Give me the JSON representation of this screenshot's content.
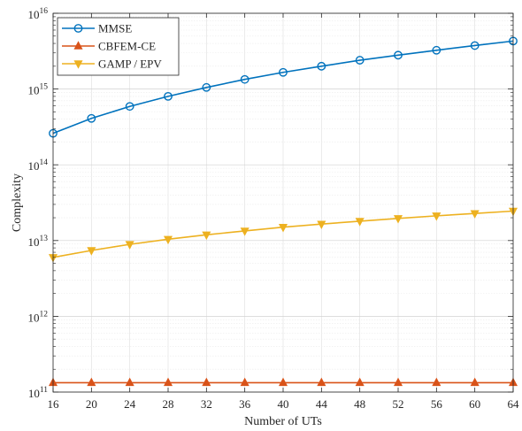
{
  "chart_data": {
    "type": "line",
    "title": "",
    "xlabel": "Number of UTs",
    "ylabel": "Complexity",
    "x": [
      16,
      20,
      24,
      28,
      32,
      36,
      40,
      44,
      48,
      52,
      56,
      60,
      64
    ],
    "x_ticks": [
      "16",
      "20",
      "24",
      "28",
      "32",
      "36",
      "40",
      "44",
      "48",
      "52",
      "56",
      "60",
      "64"
    ],
    "xlim": [
      16,
      64
    ],
    "y_scale": "log",
    "ylim": [
      100000000000,
      10000000000000000
    ],
    "y_ticks": [
      {
        "base": "10",
        "exp": "11"
      },
      {
        "base": "10",
        "exp": "12"
      },
      {
        "base": "10",
        "exp": "13"
      },
      {
        "base": "10",
        "exp": "14"
      },
      {
        "base": "10",
        "exp": "15"
      },
      {
        "base": "10",
        "exp": "16"
      }
    ],
    "grid": true,
    "legend_position": "top-left",
    "series": [
      {
        "name": "MMSE",
        "color": "#0072BD",
        "marker": "circle",
        "values": [
          260000000000000.0,
          410000000000000.0,
          590000000000000.0,
          800000000000000.0,
          1050000000000000.0,
          1340000000000000.0,
          1660000000000000.0,
          2000000000000000.0,
          2400000000000000.0,
          2800000000000000.0,
          3250000000000000.0,
          3750000000000000.0,
          4300000000000000.0
        ]
      },
      {
        "name": "CBFEM-CE",
        "color": "#D95319",
        "marker": "triangle-up",
        "values": [
          133000000000.0,
          133000000000.0,
          133000000000.0,
          133000000000.0,
          133000000000.0,
          133000000000.0,
          133000000000.0,
          133000000000.0,
          133000000000.0,
          133000000000.0,
          133000000000.0,
          133000000000.0,
          133000000000.0
        ]
      },
      {
        "name": "GAMP / EPV",
        "color": "#EDB120",
        "marker": "triangle-down",
        "values": [
          6000000000000.0,
          7400000000000.0,
          8900000000000.0,
          10400000000000.0,
          11900000000000.0,
          13400000000000.0,
          15000000000000.0,
          16500000000000.0,
          18000000000000.0,
          19600000000000.0,
          21200000000000.0,
          22800000000000.0,
          24500000000000.0
        ]
      }
    ]
  }
}
